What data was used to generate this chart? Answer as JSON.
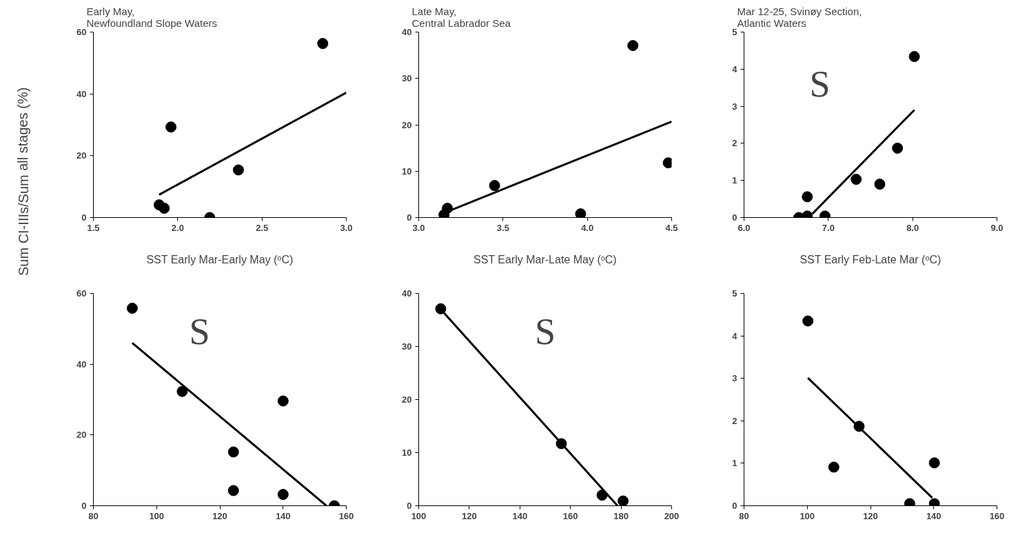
{
  "chart_data": [
    {
      "type": "scatter",
      "title": "Early May,\nNewfoundland Slope Waters",
      "xlabel": "SST Early Mar-Early May (ᵒC)",
      "ylabel": "Sum CI-IIIs/Sum all stages (%)",
      "xlim": [
        1.5,
        3.0
      ],
      "ylim": [
        0,
        60
      ],
      "xticks": [
        {
          "value": 1.5,
          "label": "1.5"
        },
        {
          "value": 2.0,
          "label": "2.0"
        },
        {
          "value": 2.5,
          "label": "2.5"
        },
        {
          "value": 3.0,
          "label": "3.0"
        }
      ],
      "yticks": [
        0,
        20,
        40,
        60
      ],
      "grid": false,
      "series": [
        {
          "color": "#000000",
          "marker": "circle",
          "x": [
            1.89,
            1.92,
            1.96,
            2.19,
            2.36,
            2.86
          ],
          "values": [
            4.1,
            3.0,
            29.3,
            0,
            15.4,
            56.3
          ]
        },
        {
          "type": "line",
          "marker": "none",
          "color": "#000000",
          "x": [
            1.89,
            3.0
          ],
          "values": [
            7.4,
            40.4
          ]
        }
      ]
    },
    {
      "type": "scatter",
      "title": "Late May,\nCentral Labrador Sea",
      "xlabel": "SST Early Mar-Late May (ᵒC)",
      "xlim": [
        3.0,
        4.5
      ],
      "ylim": [
        0,
        40
      ],
      "xticks": [
        {
          "value": 3.0,
          "label": "3.0"
        },
        {
          "value": 3.5,
          "label": "3.5"
        },
        {
          "value": 4.0,
          "label": "4.0"
        },
        {
          "value": 4.5,
          "label": "4.5"
        }
      ],
      "yticks": [
        0,
        10,
        20,
        30,
        40
      ],
      "grid": false,
      "series": [
        {
          "color": "#000000",
          "marker": "circle",
          "x": [
            3.15,
            3.17,
            3.45,
            3.96,
            4.27,
            4.48
          ],
          "values": [
            0.6,
            2.0,
            6.9,
            0.8,
            37.1,
            11.8
          ]
        },
        {
          "type": "line",
          "marker": "none",
          "color": "#000000",
          "x": [
            3.15,
            4.5
          ],
          "values": [
            1.0,
            20.7
          ]
        }
      ]
    },
    {
      "type": "scatter",
      "title": "Mar 12-25, Svinøy Section,\nAtlantic Waters",
      "xlabel": "SST Early Feb-Late Mar (ᵒC)",
      "annotations": [
        "S"
      ],
      "xlim": [
        6.0,
        9.0
      ],
      "ylim": [
        0,
        5
      ],
      "xticks": [
        {
          "value": 6.0,
          "label": "6.0"
        },
        {
          "value": 7.0,
          "label": "7.0"
        },
        {
          "value": 8.0,
          "label": "8.0"
        },
        {
          "value": 9.0,
          "label": "9.0"
        }
      ],
      "yticks": [
        0,
        1,
        2,
        3,
        4,
        5
      ],
      "grid": false,
      "series": [
        {
          "color": "#000000",
          "marker": "circle",
          "x": [
            6.65,
            6.75,
            6.75,
            6.96,
            7.33,
            7.61,
            7.82,
            8.02
          ],
          "values": [
            0.0,
            0.56,
            0.04,
            0.04,
            1.03,
            0.9,
            1.87,
            4.34
          ]
        },
        {
          "type": "line",
          "marker": "none",
          "color": "#000000",
          "x": [
            6.81,
            8.02
          ],
          "values": [
            0.1,
            2.9
          ]
        }
      ]
    },
    {
      "type": "scatter",
      "annotations": [
        "S"
      ],
      "xlim": [
        80,
        160
      ],
      "ylim": [
        0,
        60
      ],
      "xticks": [
        80,
        100,
        120,
        140,
        160
      ],
      "yticks": [
        0,
        20,
        40,
        60
      ],
      "grid": false,
      "series": [
        {
          "color": "#000000",
          "marker": "circle",
          "x": [
            92.3,
            108.1,
            124.3,
            124.3,
            140,
            140,
            156.2
          ],
          "values": [
            55.8,
            32.3,
            15.2,
            4.3,
            29.6,
            3.2,
            0
          ]
        },
        {
          "type": "line",
          "marker": "none",
          "color": "#000000",
          "x": [
            92.3,
            153.7
          ],
          "values": [
            46.0,
            0
          ]
        }
      ]
    },
    {
      "type": "scatter",
      "annotations": [
        "S"
      ],
      "xlim": [
        100,
        200
      ],
      "ylim": [
        0,
        40
      ],
      "xticks": [
        100,
        120,
        140,
        160,
        180,
        200
      ],
      "yticks": [
        0,
        10,
        20,
        30,
        40
      ],
      "grid": false,
      "series": [
        {
          "color": "#000000",
          "marker": "circle",
          "x": [
            108.7,
            156.4,
            172.5,
            180.8
          ],
          "values": [
            37.1,
            11.7,
            2.0,
            0.9
          ]
        },
        {
          "type": "line",
          "marker": "none",
          "color": "#000000",
          "x": [
            108.7,
            178.6
          ],
          "values": [
            37.0,
            0
          ]
        }
      ]
    },
    {
      "type": "scatter",
      "xlim": [
        80,
        160
      ],
      "ylim": [
        0,
        5
      ],
      "xticks": [
        80,
        100,
        120,
        140,
        160
      ],
      "yticks": [
        0,
        1,
        2,
        3,
        4,
        5
      ],
      "grid": false,
      "series": [
        {
          "color": "#000000",
          "marker": "circle",
          "x": [
            100.2,
            108.4,
            116.4,
            132.4,
            140.2,
            140.2
          ],
          "values": [
            4.35,
            0.91,
            1.87,
            0.05,
            1.01,
            0.05
          ]
        },
        {
          "type": "line",
          "marker": "none",
          "color": "#000000",
          "x": [
            100.2,
            139.5
          ],
          "values": [
            3.01,
            0.19
          ]
        }
      ]
    }
  ]
}
